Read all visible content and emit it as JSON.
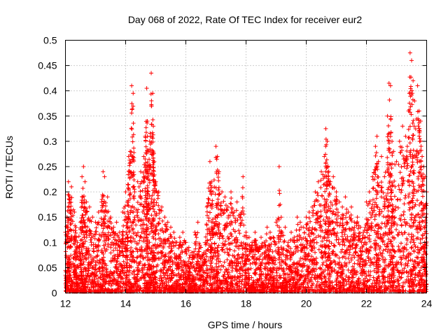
{
  "chart_data": {
    "type": "scatter",
    "title": "Day 068 of 2022, Rate Of TEC Index for receiver eur2",
    "xlabel": "GPS time / hours",
    "ylabel": "ROTI / TECUs",
    "xlim": [
      12,
      24
    ],
    "ylim": [
      0,
      0.5
    ],
    "xticks": [
      12,
      14,
      16,
      18,
      20,
      22,
      24
    ],
    "yticks": [
      0,
      0.05,
      0.1,
      0.15,
      0.2,
      0.25,
      0.3,
      0.35,
      0.4,
      0.45,
      0.5
    ],
    "xtick_labels": [
      "12",
      "14",
      "16",
      "18",
      "20",
      "22",
      "24"
    ],
    "ytick_labels": [
      "0",
      "0.05",
      "0.1",
      "0.15",
      "0.2",
      "0.25",
      "0.3",
      "0.35",
      "0.4",
      "0.45",
      "0.5"
    ],
    "grid": true,
    "marker": "plus",
    "marker_color": "#ff0000",
    "series": [
      {
        "points": [
          [
            12.0,
            0.12
          ],
          [
            12.05,
            0.15
          ],
          [
            12.1,
            0.22
          ],
          [
            12.15,
            0.19
          ],
          [
            12.2,
            0.21
          ],
          [
            12.3,
            0.16
          ],
          [
            12.35,
            0.13
          ],
          [
            12.4,
            0.1
          ],
          [
            12.5,
            0.14
          ],
          [
            12.55,
            0.23
          ],
          [
            12.6,
            0.25
          ],
          [
            12.65,
            0.22
          ],
          [
            12.7,
            0.18
          ],
          [
            12.8,
            0.17
          ],
          [
            12.9,
            0.15
          ],
          [
            13.0,
            0.14
          ],
          [
            13.1,
            0.16
          ],
          [
            13.2,
            0.18
          ],
          [
            13.25,
            0.24
          ],
          [
            13.3,
            0.23
          ],
          [
            13.4,
            0.19
          ],
          [
            13.5,
            0.15
          ],
          [
            13.6,
            0.13
          ],
          [
            13.7,
            0.14
          ],
          [
            13.8,
            0.12
          ],
          [
            13.9,
            0.16
          ],
          [
            14.0,
            0.2
          ],
          [
            14.05,
            0.18
          ],
          [
            14.1,
            0.27
          ],
          [
            14.15,
            0.28
          ],
          [
            14.2,
            0.41
          ],
          [
            14.25,
            0.395
          ],
          [
            14.3,
            0.2
          ],
          [
            14.4,
            0.22
          ],
          [
            14.5,
            0.24
          ],
          [
            14.6,
            0.27
          ],
          [
            14.65,
            0.31
          ],
          [
            14.7,
            0.405
          ],
          [
            14.72,
            0.34
          ],
          [
            14.75,
            0.28
          ],
          [
            14.8,
            0.3
          ],
          [
            14.85,
            0.435
          ],
          [
            14.9,
            0.395
          ],
          [
            14.92,
            0.33
          ],
          [
            14.95,
            0.26
          ],
          [
            15.0,
            0.22
          ],
          [
            15.1,
            0.2
          ],
          [
            15.2,
            0.17
          ],
          [
            15.3,
            0.15
          ],
          [
            15.4,
            0.14
          ],
          [
            15.5,
            0.13
          ],
          [
            15.6,
            0.12
          ],
          [
            15.7,
            0.1
          ],
          [
            15.8,
            0.11
          ],
          [
            15.9,
            0.12
          ],
          [
            16.0,
            0.1
          ],
          [
            16.1,
            0.09
          ],
          [
            16.2,
            0.08
          ],
          [
            16.3,
            0.12
          ],
          [
            16.4,
            0.14
          ],
          [
            16.5,
            0.09
          ],
          [
            16.6,
            0.08
          ],
          [
            16.7,
            0.17
          ],
          [
            16.8,
            0.26
          ],
          [
            16.85,
            0.22
          ],
          [
            16.9,
            0.2
          ],
          [
            17.0,
            0.29
          ],
          [
            17.05,
            0.27
          ],
          [
            17.1,
            0.24
          ],
          [
            17.2,
            0.2
          ],
          [
            17.3,
            0.19
          ],
          [
            17.4,
            0.17
          ],
          [
            17.5,
            0.2
          ],
          [
            17.6,
            0.16
          ],
          [
            17.7,
            0.18
          ],
          [
            17.8,
            0.15
          ],
          [
            17.9,
            0.23
          ],
          [
            18.0,
            0.12
          ],
          [
            18.1,
            0.11
          ],
          [
            18.2,
            0.1
          ],
          [
            18.3,
            0.12
          ],
          [
            18.4,
            0.09
          ],
          [
            18.5,
            0.11
          ],
          [
            18.6,
            0.1
          ],
          [
            18.7,
            0.13
          ],
          [
            18.8,
            0.12
          ],
          [
            18.9,
            0.11
          ],
          [
            19.0,
            0.14
          ],
          [
            19.1,
            0.25
          ],
          [
            19.2,
            0.12
          ],
          [
            19.3,
            0.13
          ],
          [
            19.4,
            0.1
          ],
          [
            19.5,
            0.12
          ],
          [
            19.6,
            0.11
          ],
          [
            19.7,
            0.15
          ],
          [
            19.8,
            0.14
          ],
          [
            19.9,
            0.13
          ],
          [
            20.0,
            0.15
          ],
          [
            20.1,
            0.16
          ],
          [
            20.2,
            0.17
          ],
          [
            20.3,
            0.2
          ],
          [
            20.4,
            0.22
          ],
          [
            20.5,
            0.24
          ],
          [
            20.6,
            0.27
          ],
          [
            20.65,
            0.325
          ],
          [
            20.7,
            0.3
          ],
          [
            20.75,
            0.24
          ],
          [
            20.8,
            0.22
          ],
          [
            20.9,
            0.23
          ],
          [
            21.0,
            0.2
          ],
          [
            21.1,
            0.18
          ],
          [
            21.2,
            0.17
          ],
          [
            21.3,
            0.19
          ],
          [
            21.4,
            0.16
          ],
          [
            21.5,
            0.17
          ],
          [
            21.6,
            0.14
          ],
          [
            21.7,
            0.15
          ],
          [
            21.8,
            0.13
          ],
          [
            21.9,
            0.12
          ],
          [
            22.0,
            0.18
          ],
          [
            22.1,
            0.2
          ],
          [
            22.2,
            0.23
          ],
          [
            22.3,
            0.29
          ],
          [
            22.35,
            0.31
          ],
          [
            22.4,
            0.26
          ],
          [
            22.5,
            0.27
          ],
          [
            22.6,
            0.23
          ],
          [
            22.7,
            0.35
          ],
          [
            22.75,
            0.415
          ],
          [
            22.8,
            0.41
          ],
          [
            22.85,
            0.3
          ],
          [
            22.9,
            0.28
          ],
          [
            23.0,
            0.26
          ],
          [
            23.1,
            0.3
          ],
          [
            23.2,
            0.33
          ],
          [
            23.3,
            0.31
          ],
          [
            23.4,
            0.36
          ],
          [
            23.45,
            0.475
          ],
          [
            23.5,
            0.46
          ],
          [
            23.55,
            0.42
          ],
          [
            23.6,
            0.38
          ],
          [
            23.7,
            0.41
          ],
          [
            23.75,
            0.36
          ],
          [
            23.8,
            0.34
          ],
          [
            23.85,
            0.27
          ],
          [
            23.9,
            0.25
          ],
          [
            23.95,
            0.23
          ],
          [
            24.0,
            0.2
          ]
        ]
      }
    ]
  }
}
